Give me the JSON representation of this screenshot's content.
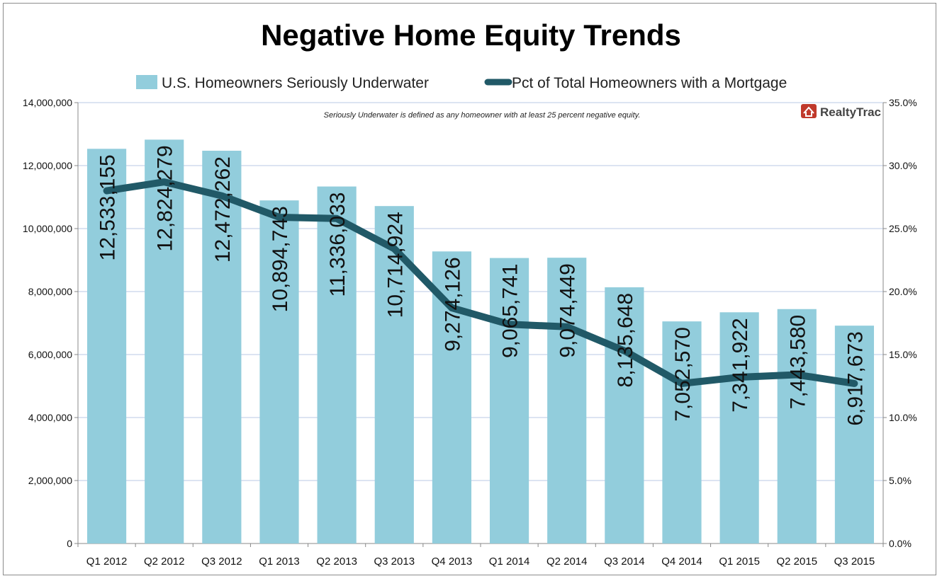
{
  "chart_data": {
    "type": "bar",
    "title": "Negative Home Equity Trends",
    "annotation": "Seriously Underwater is defined as any homeowner with at least 25 percent negative equity.",
    "logo_text": "RealtyTrac",
    "categories": [
      "Q1 2012",
      "Q2 2012",
      "Q3 2012",
      "Q1 2013",
      "Q2 2013",
      "Q3 2013",
      "Q4 2013",
      "Q1 2014",
      "Q2 2014",
      "Q3 2014",
      "Q4 2014",
      "Q1 2015",
      "Q2 2015",
      "Q3 2015"
    ],
    "series": [
      {
        "name": "U.S. Homeowners Seriously Underwater",
        "type": "bar",
        "axis": "left",
        "color": "#92cddc",
        "values": [
          12533155,
          12824279,
          12472262,
          10894743,
          11336033,
          10714924,
          9274126,
          9065741,
          9074449,
          8135648,
          7052570,
          7341922,
          7443580,
          6917673
        ],
        "labels": [
          "12,533,155",
          "12,824,279",
          "12,472,262",
          "10,894,743",
          "11,336,033",
          "10,714,924",
          "9,274,126",
          "9,065,741",
          "9,074,449",
          "8,135,648",
          "7,052,570",
          "7,341,922",
          "7,443,580",
          "6,917,673"
        ]
      },
      {
        "name": "Pct of Total Homeowners with a Mortgage",
        "type": "line",
        "axis": "right",
        "color": "#215967",
        "values": [
          28.0,
          28.7,
          27.6,
          25.9,
          25.8,
          23.4,
          18.7,
          17.4,
          17.2,
          15.3,
          12.7,
          13.2,
          13.4,
          12.7
        ]
      }
    ],
    "y_left": {
      "ylim": [
        0,
        14000000
      ],
      "ticks": [
        0,
        2000000,
        4000000,
        6000000,
        8000000,
        10000000,
        12000000,
        14000000
      ],
      "tick_labels": [
        "0",
        "2,000,000",
        "4,000,000",
        "6,000,000",
        "8,000,000",
        "10,000,000",
        "12,000,000",
        "14,000,000"
      ]
    },
    "y_right": {
      "ylim": [
        0,
        35
      ],
      "ticks": [
        0,
        5,
        10,
        15,
        20,
        25,
        30,
        35
      ],
      "tick_labels": [
        "0.0%",
        "5.0%",
        "10.0%",
        "15.0%",
        "20.0%",
        "25.0%",
        "30.0%",
        "35.0%"
      ]
    },
    "grid": true,
    "legend_position": "top"
  },
  "colors": {
    "grid": "#b9c9e4",
    "logo_red": "#c0392b"
  }
}
